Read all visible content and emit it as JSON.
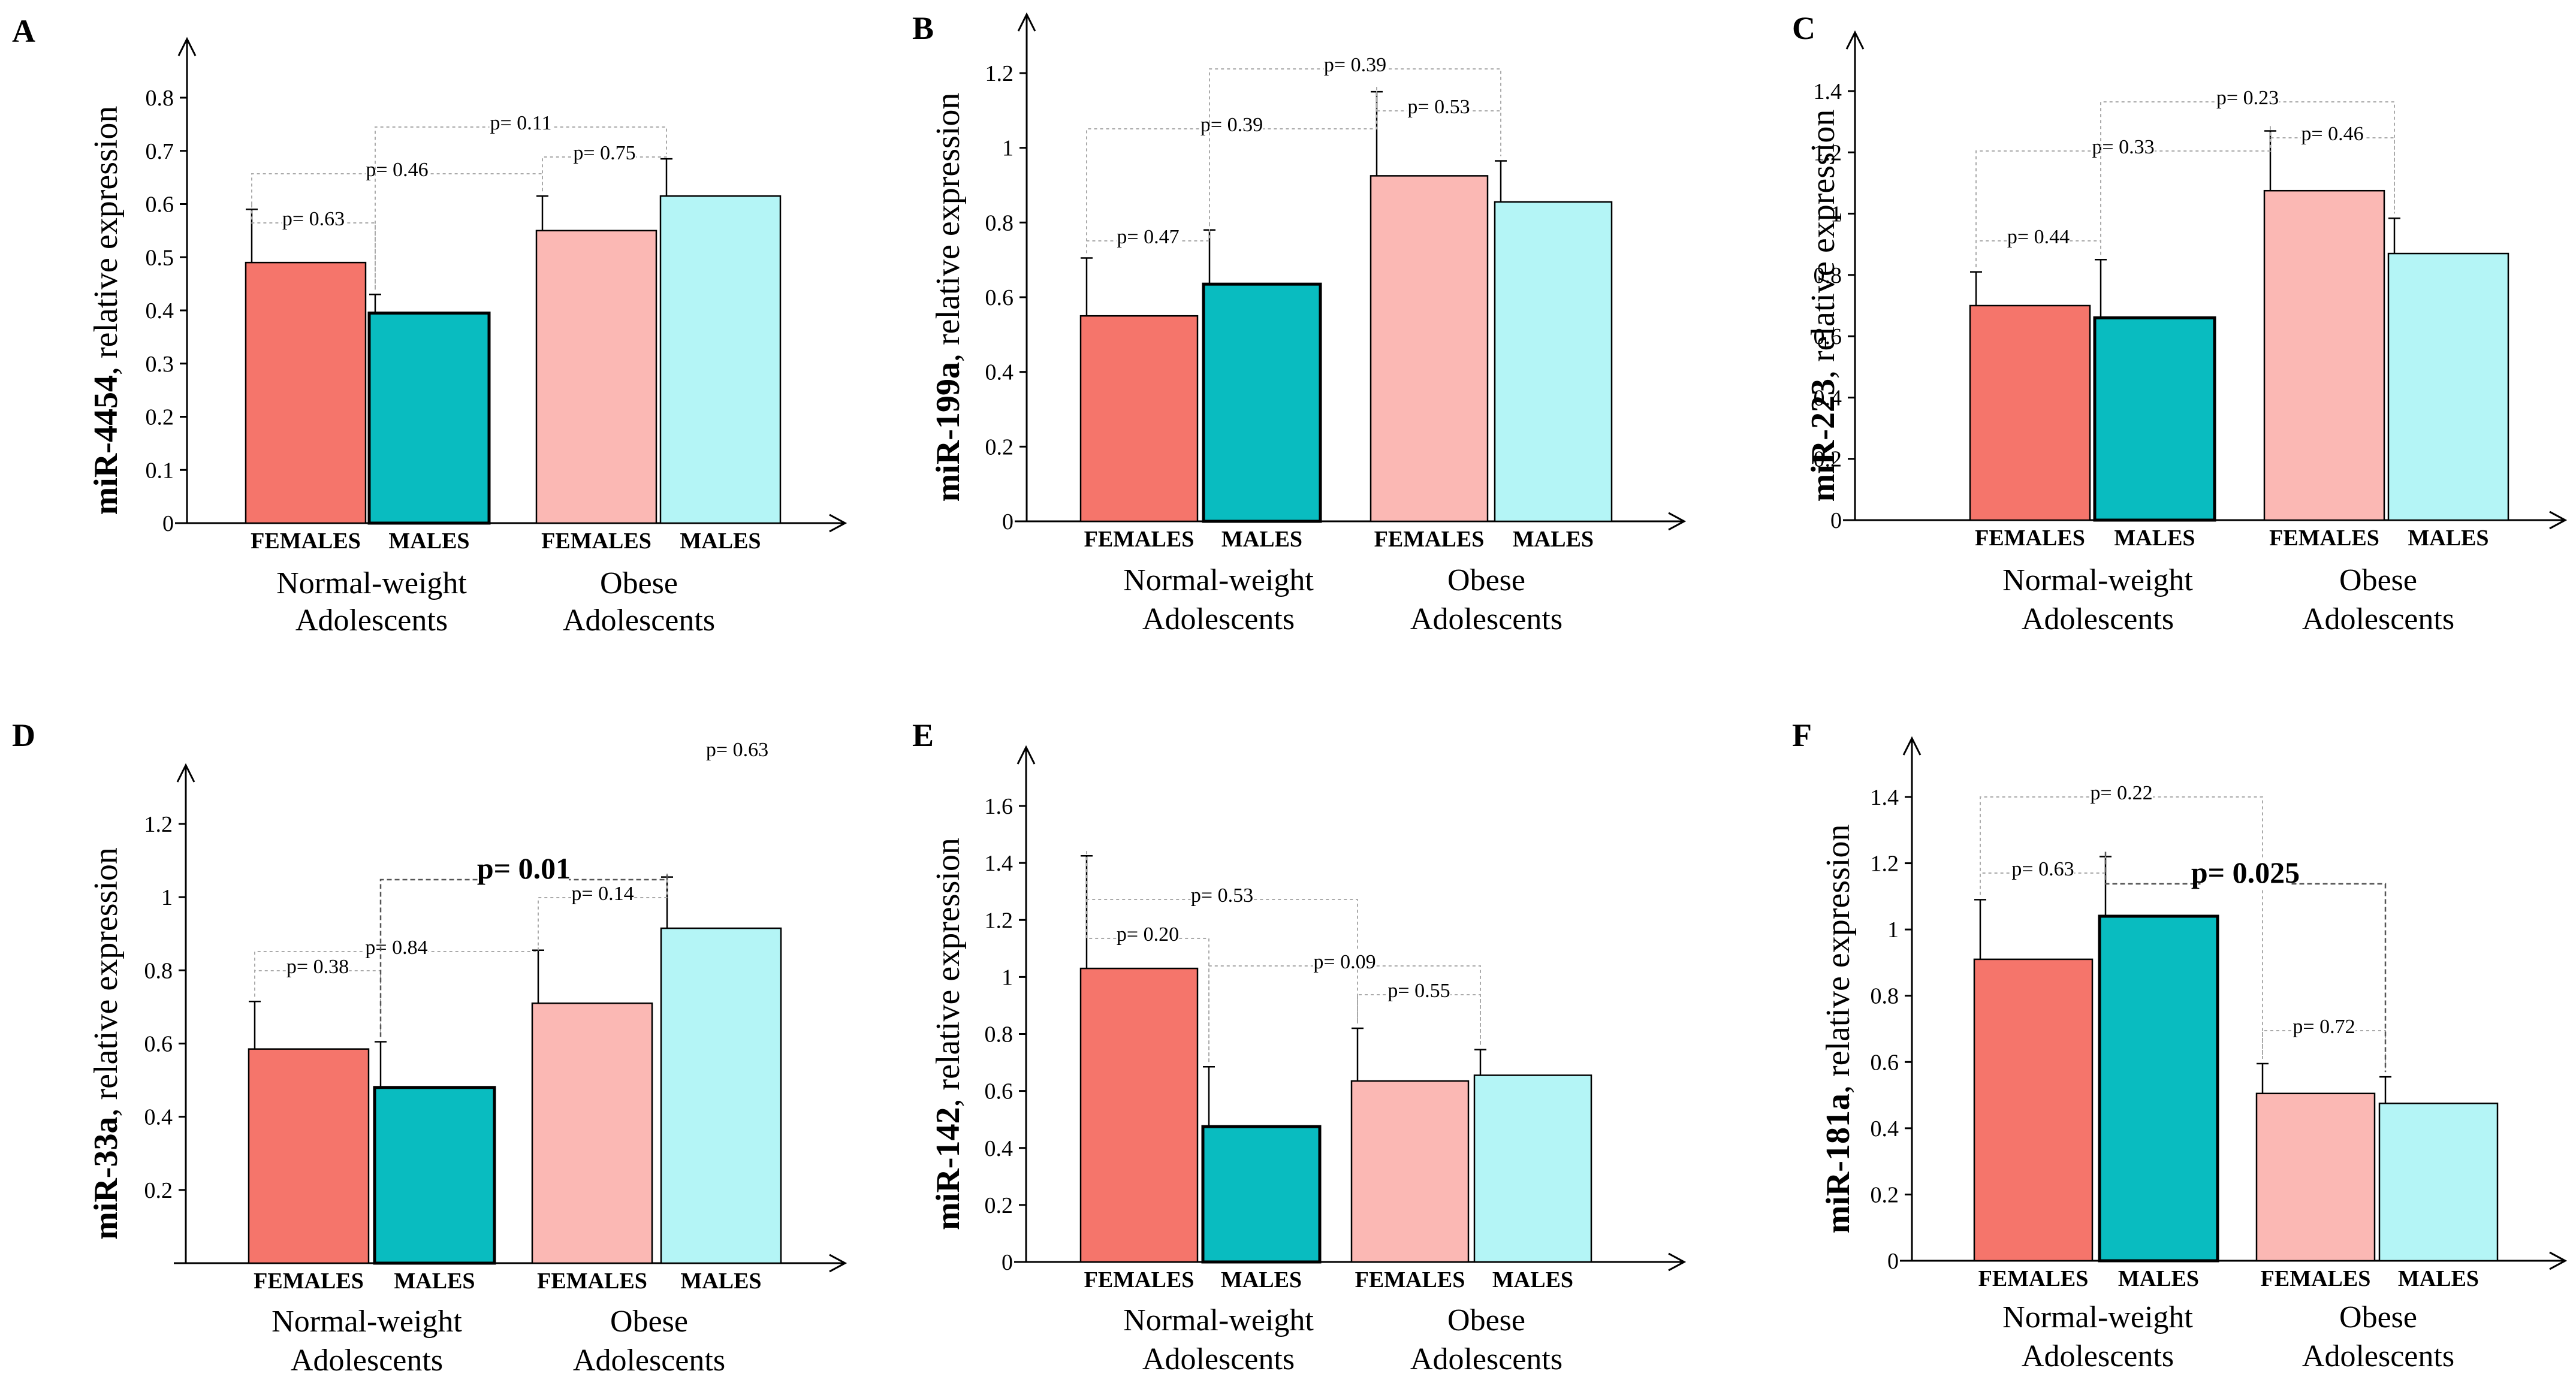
{
  "figure": {
    "group_labels": {
      "normal": [
        "Normal-weight",
        "Adolescents"
      ],
      "obese": [
        "Obese",
        "Adolescents"
      ]
    },
    "category_labels": [
      "FEMALES",
      "MALES",
      "FEMALES",
      "MALES"
    ],
    "colors": {
      "normal_female": "#f5756b",
      "normal_male": "#09bcc0",
      "obese_female": "#fbb8b4",
      "obese_male": "#b4f5f6"
    }
  },
  "chart_data": [
    {
      "type": "bar",
      "panel": "A",
      "ylabel_bold": "miR-4454",
      "ylabel_rest": ", relative expression",
      "ylim": [
        0,
        0.8
      ],
      "yticks": [
        "0",
        "0.1",
        "0.2",
        "0.3",
        "0.4",
        "0.5",
        "0.6",
        "0.7",
        "0.8"
      ],
      "categories": [
        "FEMALES",
        "MALES",
        "FEMALES",
        "MALES"
      ],
      "values": [
        0.49,
        0.395,
        0.55,
        0.615
      ],
      "errors": [
        0.1,
        0.035,
        0.065,
        0.07
      ],
      "comparisons": [
        {
          "from": 0,
          "to": 1,
          "label": "p= 0.63",
          "bold": false
        },
        {
          "from": 0,
          "to": 2,
          "label": "p= 0.46",
          "bold": false
        },
        {
          "from": 2,
          "to": 3,
          "label": "p= 0.75",
          "bold": false
        },
        {
          "from": 1,
          "to": 3,
          "label": "p= 0.11",
          "bold": false
        }
      ]
    },
    {
      "type": "bar",
      "panel": "B",
      "ylabel_bold": "miR-199a",
      "ylabel_rest": ", relative expression",
      "ylim": [
        0,
        1.2
      ],
      "yticks": [
        "0",
        "0.2",
        "0.4",
        "0.6",
        "0.8",
        "1",
        "1.2"
      ],
      "categories": [
        "FEMALES",
        "MALES",
        "FEMALES",
        "MALES"
      ],
      "values": [
        0.55,
        0.635,
        0.925,
        0.855
      ],
      "errors": [
        0.155,
        0.145,
        0.225,
        0.11
      ],
      "comparisons": [
        {
          "from": 0,
          "to": 1,
          "label": "p= 0.47",
          "bold": false
        },
        {
          "from": 0,
          "to": 2,
          "label": "p= 0.39",
          "bold": false
        },
        {
          "from": 2,
          "to": 3,
          "label": "p= 0.53",
          "bold": false
        },
        {
          "from": 1,
          "to": 3,
          "label": "p= 0.39",
          "bold": false
        }
      ]
    },
    {
      "type": "bar",
      "panel": "C",
      "ylabel_bold": "miR-223",
      "ylabel_rest": ", relative expression",
      "ylim": [
        0,
        1.4
      ],
      "yticks": [
        "0",
        "0.2",
        "0.4",
        "0.6",
        "0.8",
        "1",
        "1.2",
        "1.4"
      ],
      "categories": [
        "FEMALES",
        "MALES",
        "FEMALES",
        "MALES"
      ],
      "values": [
        0.7,
        0.66,
        1.075,
        0.87
      ],
      "errors": [
        0.11,
        0.19,
        0.195,
        0.115
      ],
      "comparisons": [
        {
          "from": 0,
          "to": 1,
          "label": "p= 0.44",
          "bold": false
        },
        {
          "from": 0,
          "to": 2,
          "label": "p= 0.33",
          "bold": false
        },
        {
          "from": 2,
          "to": 3,
          "label": "p= 0.46",
          "bold": false
        },
        {
          "from": 1,
          "to": 3,
          "label": "p= 0.23",
          "bold": false
        }
      ]
    },
    {
      "type": "bar",
      "panel": "D",
      "ylabel_bold": "miR-33a",
      "ylabel_rest": ", relative expression",
      "ylim": [
        0,
        1.2
      ],
      "yticks": [
        "0.2",
        "0.4",
        "0.6",
        "0.8",
        "1",
        "1.2"
      ],
      "categories": [
        "FEMALES",
        "MALES",
        "FEMALES",
        "MALES"
      ],
      "values": [
        0.585,
        0.48,
        0.71,
        0.915
      ],
      "errors": [
        0.13,
        0.125,
        0.145,
        0.14
      ],
      "comparisons": [
        {
          "from": 0,
          "to": 1,
          "label": "p= 0.38",
          "bold": false
        },
        {
          "from": 0,
          "to": 2,
          "label": "p= 0.84",
          "bold": false
        },
        {
          "from": 2,
          "to": 3,
          "label": "p= 0.14",
          "bold": false
        },
        {
          "from": 1,
          "to": 3,
          "label": "p= 0.01",
          "bold": true
        }
      ],
      "extra_label": "p= 0.63"
    },
    {
      "type": "bar",
      "panel": "E",
      "ylabel_bold": "miR-142",
      "ylabel_rest": ", relative expression",
      "ylim": [
        0,
        1.6
      ],
      "yticks": [
        "0",
        "0.2",
        "0.4",
        "0.6",
        "0.8",
        "1",
        "1.2",
        "1.4",
        "1.6"
      ],
      "categories": [
        "FEMALES",
        "MALES",
        "FEMALES",
        "MALES"
      ],
      "values": [
        1.03,
        0.475,
        0.635,
        0.655
      ],
      "errors": [
        0.395,
        0.21,
        0.185,
        0.09
      ],
      "comparisons": [
        {
          "from": 0,
          "to": 1,
          "label": "p= 0.20",
          "bold": false
        },
        {
          "from": 0,
          "to": 2,
          "label": "p= 0.53",
          "bold": false
        },
        {
          "from": 2,
          "to": 3,
          "label": "p= 0.55",
          "bold": false
        },
        {
          "from": 1,
          "to": 3,
          "label": "p= 0.09",
          "bold": false
        }
      ]
    },
    {
      "type": "bar",
      "panel": "F",
      "ylabel_bold": "miR-181a",
      "ylabel_rest": ", relative expression",
      "ylim": [
        0,
        1.4
      ],
      "yticks": [
        "0",
        "0.2",
        "0.4",
        "0.6",
        "0.8",
        "1",
        "1.2",
        "1.4"
      ],
      "categories": [
        "FEMALES",
        "MALES",
        "FEMALES",
        "MALES"
      ],
      "values": [
        0.91,
        1.04,
        0.505,
        0.475
      ],
      "errors": [
        0.18,
        0.18,
        0.09,
        0.08
      ],
      "comparisons": [
        {
          "from": 0,
          "to": 1,
          "label": "p= 0.63",
          "bold": false
        },
        {
          "from": 0,
          "to": 2,
          "label": "p= 0.22",
          "bold": false
        },
        {
          "from": 2,
          "to": 3,
          "label": "p= 0.72",
          "bold": false
        },
        {
          "from": 1,
          "to": 3,
          "label": "p= 0.025",
          "bold": true
        }
      ]
    }
  ]
}
